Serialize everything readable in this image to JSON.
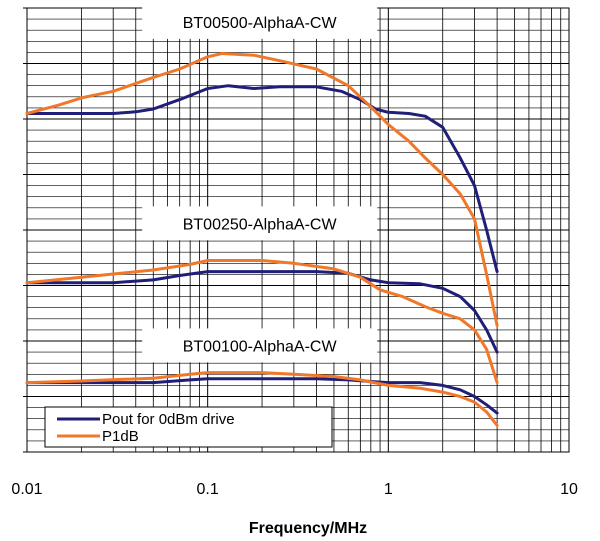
{
  "chart_data": {
    "type": "line",
    "title": "",
    "xlabel": "Frequency/MHz",
    "ylabel": "",
    "xscale": "log",
    "xlim": [
      0.01,
      10
    ],
    "ylim": [
      0,
      8
    ],
    "x_ticks": [
      {
        "value": 0.01,
        "label": "0.01"
      },
      {
        "value": 0.1,
        "label": "0.1"
      },
      {
        "value": 1,
        "label": "1"
      },
      {
        "value": 10,
        "label": "10"
      }
    ],
    "grid": true,
    "legend": {
      "position": "bottom-left",
      "entries": [
        {
          "name": "Pout for 0dBm drive",
          "color": "#1f1f7a"
        },
        {
          "name": "P1dB",
          "color": "#f0782a"
        }
      ]
    },
    "annotations": [
      {
        "text": "BT00500-AlphaA-CW",
        "x": 0.1,
        "y": 7.75
      },
      {
        "text": "BT00250-AlphaA-CW",
        "x": 0.1,
        "y": 4.12
      },
      {
        "text": "BT00100-AlphaA-CW",
        "x": 0.1,
        "y": 1.92
      }
    ],
    "series": [
      {
        "name": "Pout for 0dBm drive",
        "group": "BT00500-AlphaA-CW",
        "color": "#1f1f7a",
        "points": [
          [
            0.01,
            6.1
          ],
          [
            0.02,
            6.1
          ],
          [
            0.03,
            6.1
          ],
          [
            0.04,
            6.13
          ],
          [
            0.05,
            6.18
          ],
          [
            0.07,
            6.35
          ],
          [
            0.1,
            6.55
          ],
          [
            0.13,
            6.6
          ],
          [
            0.18,
            6.55
          ],
          [
            0.25,
            6.58
          ],
          [
            0.4,
            6.58
          ],
          [
            0.55,
            6.5
          ],
          [
            0.7,
            6.35
          ],
          [
            0.85,
            6.18
          ],
          [
            1,
            6.12
          ],
          [
            1.3,
            6.1
          ],
          [
            1.6,
            6.05
          ],
          [
            2,
            5.85
          ],
          [
            2.5,
            5.3
          ],
          [
            3,
            4.8
          ],
          [
            3.5,
            4.0
          ],
          [
            4,
            3.25
          ]
        ]
      },
      {
        "name": "P1dB",
        "group": "BT00500-AlphaA-CW",
        "color": "#f0782a",
        "points": [
          [
            0.01,
            6.1
          ],
          [
            0.015,
            6.25
          ],
          [
            0.02,
            6.38
          ],
          [
            0.03,
            6.5
          ],
          [
            0.05,
            6.75
          ],
          [
            0.07,
            6.9
          ],
          [
            0.1,
            7.12
          ],
          [
            0.12,
            7.18
          ],
          [
            0.18,
            7.15
          ],
          [
            0.25,
            7.05
          ],
          [
            0.4,
            6.9
          ],
          [
            0.6,
            6.6
          ],
          [
            0.8,
            6.22
          ],
          [
            1,
            5.9
          ],
          [
            1.3,
            5.6
          ],
          [
            1.6,
            5.3
          ],
          [
            2,
            5.0
          ],
          [
            2.5,
            4.65
          ],
          [
            3,
            4.2
          ],
          [
            3.5,
            3.2
          ],
          [
            4,
            2.28
          ]
        ]
      },
      {
        "name": "Pout for 0dBm drive",
        "group": "BT00250-AlphaA-CW",
        "color": "#1f1f7a",
        "points": [
          [
            0.01,
            3.05
          ],
          [
            0.03,
            3.05
          ],
          [
            0.05,
            3.1
          ],
          [
            0.07,
            3.18
          ],
          [
            0.1,
            3.25
          ],
          [
            0.2,
            3.25
          ],
          [
            0.4,
            3.25
          ],
          [
            0.6,
            3.22
          ],
          [
            0.8,
            3.1
          ],
          [
            1,
            3.05
          ],
          [
            1.5,
            3.03
          ],
          [
            2,
            2.95
          ],
          [
            2.5,
            2.8
          ],
          [
            3,
            2.55
          ],
          [
            3.5,
            2.2
          ],
          [
            4,
            1.8
          ]
        ]
      },
      {
        "name": "P1dB",
        "group": "BT00250-AlphaA-CW",
        "color": "#f0782a",
        "points": [
          [
            0.01,
            3.05
          ],
          [
            0.02,
            3.15
          ],
          [
            0.05,
            3.28
          ],
          [
            0.08,
            3.38
          ],
          [
            0.1,
            3.45
          ],
          [
            0.2,
            3.45
          ],
          [
            0.3,
            3.4
          ],
          [
            0.5,
            3.3
          ],
          [
            0.7,
            3.15
          ],
          [
            0.9,
            2.92
          ],
          [
            1.2,
            2.8
          ],
          [
            1.6,
            2.62
          ],
          [
            2,
            2.5
          ],
          [
            2.5,
            2.4
          ],
          [
            3,
            2.2
          ],
          [
            3.5,
            1.85
          ],
          [
            4,
            1.25
          ]
        ]
      },
      {
        "name": "Pout for 0dBm drive",
        "group": "BT00100-AlphaA-CW",
        "color": "#1f1f7a",
        "points": [
          [
            0.01,
            1.25
          ],
          [
            0.03,
            1.25
          ],
          [
            0.05,
            1.25
          ],
          [
            0.08,
            1.3
          ],
          [
            0.1,
            1.32
          ],
          [
            0.2,
            1.32
          ],
          [
            0.4,
            1.32
          ],
          [
            0.6,
            1.3
          ],
          [
            0.8,
            1.27
          ],
          [
            1,
            1.25
          ],
          [
            1.5,
            1.25
          ],
          [
            2,
            1.2
          ],
          [
            2.5,
            1.12
          ],
          [
            3,
            1.0
          ],
          [
            3.5,
            0.85
          ],
          [
            4,
            0.7
          ]
        ]
      },
      {
        "name": "P1dB",
        "group": "BT00100-AlphaA-CW",
        "color": "#f0782a",
        "points": [
          [
            0.01,
            1.25
          ],
          [
            0.02,
            1.28
          ],
          [
            0.05,
            1.33
          ],
          [
            0.08,
            1.4
          ],
          [
            0.1,
            1.43
          ],
          [
            0.2,
            1.43
          ],
          [
            0.3,
            1.4
          ],
          [
            0.5,
            1.36
          ],
          [
            0.7,
            1.3
          ],
          [
            1,
            1.2
          ],
          [
            1.5,
            1.15
          ],
          [
            2,
            1.08
          ],
          [
            2.5,
            1.0
          ],
          [
            3,
            0.9
          ],
          [
            3.5,
            0.72
          ],
          [
            4,
            0.48
          ]
        ]
      }
    ]
  }
}
